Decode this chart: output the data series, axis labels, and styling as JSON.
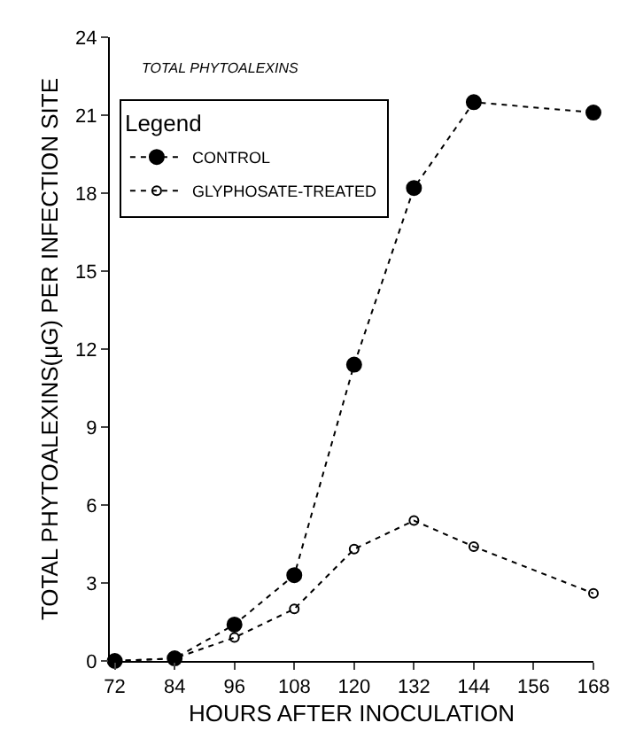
{
  "chart_data": {
    "type": "line",
    "xlabel": "HOURS AFTER INOCULATION",
    "ylabel": "TOTAL PHYTOALEXINS(μG) PER INFECTION SITE",
    "legend_title": "Legend",
    "annotations": [
      "TOTAL PHYTOALEXINS"
    ],
    "x": [
      72,
      84,
      96,
      108,
      120,
      132,
      144,
      168
    ],
    "series": [
      {
        "name": "CONTROL",
        "color": "#000000",
        "values": [
          0,
          0.1,
          1.4,
          3.3,
          11.4,
          18.2,
          21.5,
          21.1
        ]
      },
      {
        "name": "GLYPHOSATE-TREATED",
        "color": "#000000",
        "values": [
          0,
          0.1,
          0.9,
          2.0,
          4.3,
          5.4,
          4.4,
          2.6
        ]
      }
    ],
    "xlim": [
      71,
      168
    ],
    "xticks": [
      72,
      84,
      96,
      108,
      120,
      132,
      144,
      156,
      168
    ],
    "ylim": [
      0,
      24
    ],
    "yticks": [
      0,
      3,
      6,
      9,
      12,
      15,
      18,
      21,
      24
    ],
    "grid": false,
    "legend": "top left",
    "marker": "circle",
    "line_style": "dotted"
  }
}
